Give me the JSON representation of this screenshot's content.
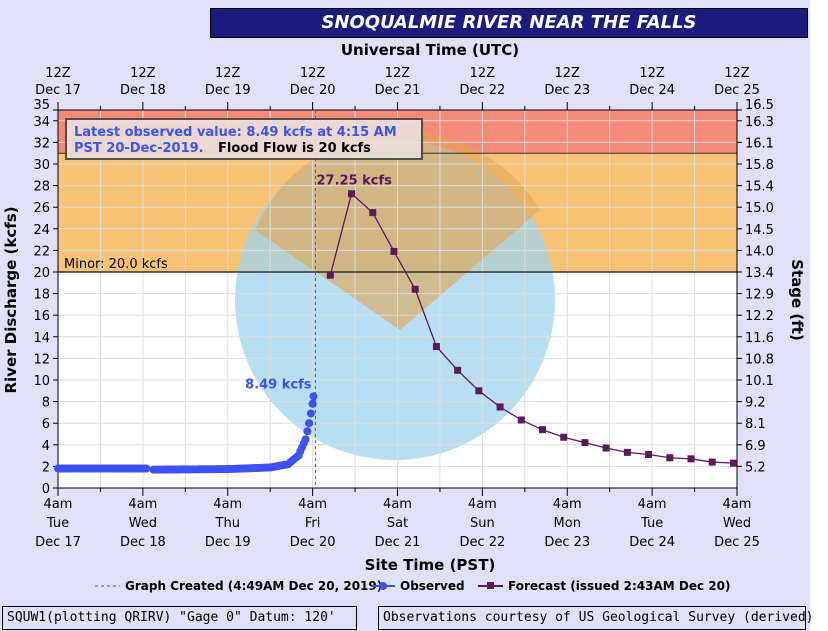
{
  "title": "SNOQUALMIE RIVER NEAR THE FALLS",
  "footer_left": "SQUW1(plotting QRIRV) \"Gage 0\" Datum: 120'",
  "footer_right": "Observations courtesy of US Geological Survey (derived)",
  "chart_data": {
    "type": "line",
    "title": "SNOQUALMIE RIVER NEAR THE FALLS",
    "top_axis_label": "Universal Time (UTC)",
    "xlabel": "Site Time (PST)",
    "ylabel": "River Discharge (kcfs)",
    "y2label": "Stage (ft)",
    "ylim": [
      0,
      35
    ],
    "x_unit": "hours since 4am Tue Dec 17 (PST)",
    "xlim": [
      0,
      192
    ],
    "top_ticks": [
      [
        "12Z",
        "Dec 17"
      ],
      [
        "12Z",
        "Dec 18"
      ],
      [
        "12Z",
        "Dec 19"
      ],
      [
        "12Z",
        "Dec 20"
      ],
      [
        "12Z",
        "Dec 21"
      ],
      [
        "12Z",
        "Dec 22"
      ],
      [
        "12Z",
        "Dec 23"
      ],
      [
        "12Z",
        "Dec 24"
      ],
      [
        "12Z",
        "Dec 25"
      ]
    ],
    "bottom_ticks": [
      [
        "4am",
        "Tue",
        "Dec 17"
      ],
      [
        "4am",
        "Wed",
        "Dec 18"
      ],
      [
        "4am",
        "Thu",
        "Dec 19"
      ],
      [
        "4am",
        "Fri",
        "Dec 20"
      ],
      [
        "4am",
        "Sat",
        "Dec 21"
      ],
      [
        "4am",
        "Sun",
        "Dec 22"
      ],
      [
        "4am",
        "Mon",
        "Dec 23"
      ],
      [
        "4am",
        "Tue",
        "Dec 24"
      ],
      [
        "4am",
        "Wed",
        "Dec 25"
      ]
    ],
    "y_ticks": [
      0,
      2,
      4,
      6,
      8,
      10,
      12,
      14,
      16,
      18,
      20,
      22,
      24,
      26,
      28,
      30,
      32,
      34,
      35
    ],
    "y2_ticks": [
      [
        "5.2",
        2
      ],
      [
        "6.9",
        4
      ],
      [
        "8.1",
        6
      ],
      [
        "9.2",
        8
      ],
      [
        "10.1",
        10
      ],
      [
        "10.8",
        12
      ],
      [
        "11.6",
        14
      ],
      [
        "12.2",
        16
      ],
      [
        "12.9",
        18
      ],
      [
        "13.4",
        20
      ],
      [
        "14.0",
        22
      ],
      [
        "14.5",
        24
      ],
      [
        "15.0",
        26
      ],
      [
        "15.4",
        28
      ],
      [
        "15.8",
        30
      ],
      [
        "16.1",
        32
      ],
      [
        "16.3",
        34
      ],
      [
        "16.5",
        35
      ]
    ],
    "bands": [
      {
        "name": "minor",
        "from": 20,
        "to": 31,
        "color": "#f9c375"
      },
      {
        "name": "moderate",
        "from": 31,
        "to": 35,
        "color": "#f58a78"
      }
    ],
    "minor_label": "Minor: 20.0 kcfs",
    "graph_created_hour": 72.8,
    "info_blue": "Latest observed value: 8.49 kcfs at 4:15 AM",
    "info_blue2": "PST 20-Dec-2019.",
    "info_black": "Flood Flow is 20 kcfs",
    "observed_label": "8.49 kcfs",
    "forecast_label": "27.25 kcfs",
    "series": [
      {
        "name": "Observed",
        "color": "#3f51f5",
        "segments": [
          [
            [
              0,
              1.8
            ],
            [
              25,
              1.8
            ]
          ],
          [
            [
              27,
              1.7
            ],
            [
              48,
              1.75
            ],
            [
              60,
              1.9
            ],
            [
              65,
              2.2
            ],
            [
              68,
              3.0
            ],
            [
              70,
              4.5
            ],
            [
              71,
              6.0
            ],
            [
              72,
              7.8
            ],
            [
              72.25,
              8.49
            ]
          ]
        ]
      },
      {
        "name": "Forecast",
        "color": "#5c1a5c",
        "points": [
          [
            77,
            19.7
          ],
          [
            83,
            27.25
          ],
          [
            89,
            25.5
          ],
          [
            95,
            21.9
          ],
          [
            101,
            18.4
          ],
          [
            107,
            13.1
          ],
          [
            113,
            10.9
          ],
          [
            119,
            9.0
          ],
          [
            125,
            7.5
          ],
          [
            131,
            6.3
          ],
          [
            137,
            5.4
          ],
          [
            143,
            4.7
          ],
          [
            149,
            4.2
          ],
          [
            155,
            3.7
          ],
          [
            161,
            3.3
          ],
          [
            167,
            3.1
          ],
          [
            173,
            2.8
          ],
          [
            179,
            2.7
          ],
          [
            185,
            2.4
          ],
          [
            191,
            2.3
          ]
        ]
      }
    ],
    "legend": {
      "graph_created": "Graph Created (4:49AM Dec 20, 2019)",
      "observed": "Observed",
      "forecast": "Forecast (issued 2:43AM Dec 20)"
    }
  }
}
